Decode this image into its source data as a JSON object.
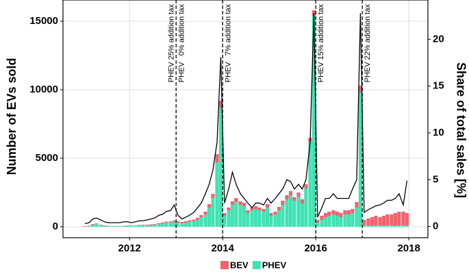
{
  "chart_data": {
    "type": "bar",
    "y_label": "Number of EVs sold",
    "y2_label": "Share of total sales [%]",
    "x": [
      2011.04,
      2011.13,
      2011.21,
      2011.29,
      2011.38,
      2011.46,
      2011.54,
      2011.63,
      2011.71,
      2011.79,
      2011.88,
      2011.96,
      2012.04,
      2012.13,
      2012.21,
      2012.29,
      2012.38,
      2012.46,
      2012.54,
      2012.63,
      2012.71,
      2012.79,
      2012.88,
      2012.96,
      2013.04,
      2013.13,
      2013.21,
      2013.29,
      2013.38,
      2013.46,
      2013.54,
      2013.63,
      2013.71,
      2013.79,
      2013.88,
      2013.96,
      2014.04,
      2014.13,
      2014.21,
      2014.29,
      2014.38,
      2014.46,
      2014.54,
      2014.63,
      2014.71,
      2014.79,
      2014.88,
      2014.96,
      2015.04,
      2015.13,
      2015.21,
      2015.29,
      2015.38,
      2015.46,
      2015.54,
      2015.63,
      2015.71,
      2015.79,
      2015.88,
      2015.96,
      2016.04,
      2016.13,
      2016.21,
      2016.29,
      2016.38,
      2016.46,
      2016.54,
      2016.63,
      2016.71,
      2016.79,
      2016.88,
      2016.96,
      2017.04,
      2017.13,
      2017.21,
      2017.29,
      2017.38,
      2017.46,
      2017.54,
      2017.63,
      2017.71,
      2017.79,
      2017.88,
      2017.96
    ],
    "series": [
      {
        "name": "PHEV",
        "color": "#3fe3b4",
        "values": [
          20,
          40,
          150,
          200,
          120,
          80,
          60,
          40,
          30,
          40,
          50,
          60,
          60,
          70,
          90,
          100,
          110,
          130,
          150,
          200,
          250,
          300,
          300,
          350,
          300,
          250,
          300,
          350,
          400,
          500,
          700,
          900,
          1400,
          2100,
          4700,
          8700,
          800,
          1200,
          1600,
          1800,
          1600,
          1500,
          1000,
          1200,
          1300,
          1200,
          1100,
          1400,
          800,
          900,
          1200,
          1600,
          2000,
          2300,
          1900,
          2200,
          1700,
          2800,
          6200,
          15400,
          300,
          500,
          700,
          800,
          900,
          800,
          700,
          900,
          900,
          1000,
          1400,
          9800,
          100,
          100,
          100,
          100,
          100,
          100,
          100,
          100,
          100,
          100,
          100,
          100
        ]
      },
      {
        "name": "BEV",
        "color": "#f2636d",
        "values": [
          30,
          40,
          50,
          40,
          30,
          20,
          20,
          20,
          20,
          20,
          20,
          30,
          30,
          30,
          40,
          40,
          40,
          50,
          50,
          60,
          60,
          70,
          80,
          100,
          100,
          100,
          100,
          120,
          120,
          150,
          150,
          200,
          250,
          300,
          600,
          500,
          200,
          200,
          250,
          300,
          250,
          250,
          200,
          200,
          200,
          200,
          200,
          250,
          200,
          200,
          250,
          300,
          300,
          300,
          250,
          300,
          300,
          300,
          300,
          400,
          200,
          300,
          300,
          300,
          300,
          300,
          300,
          300,
          300,
          300,
          400,
          500,
          400,
          500,
          600,
          700,
          600,
          700,
          800,
          800,
          900,
          1000,
          1000,
          900
        ]
      },
      {
        "name": "Share",
        "color": "#000000",
        "axis": "y2",
        "values": [
          0.3,
          0.4,
          0.8,
          0.9,
          0.7,
          0.5,
          0.4,
          0.4,
          0.4,
          0.4,
          0.5,
          0.5,
          0.4,
          0.5,
          0.6,
          0.6,
          0.7,
          0.8,
          0.9,
          1.2,
          1.3,
          1.6,
          1.7,
          2.3,
          1.2,
          0.8,
          1.0,
          1.2,
          1.5,
          2.0,
          2.5,
          3.5,
          4.5,
          6.0,
          9.0,
          18.1,
          2.5,
          4.0,
          5.8,
          4.5,
          3.5,
          3.0,
          2.5,
          2.0,
          2.5,
          2.5,
          2.3,
          3.0,
          2.5,
          3.0,
          3.5,
          4.0,
          5.0,
          4.8,
          4.0,
          4.5,
          4.0,
          5.0,
          9.0,
          22.8,
          1.0,
          2.0,
          3.0,
          3.0,
          3.5,
          3.0,
          3.0,
          3.0,
          3.0,
          4.0,
          5.0,
          22.8,
          1.5,
          1.8,
          2.0,
          2.2,
          2.3,
          2.5,
          2.8,
          2.8,
          3.0,
          3.5,
          2.3,
          4.9
        ]
      }
    ],
    "legend": [
      "BEV",
      "PHEV"
    ],
    "xlim": [
      2010.57,
      2018.41
    ],
    "xticks": [
      2012,
      2014,
      2016,
      2018
    ],
    "ylim": [
      -800,
      16550
    ],
    "yticks": [
      0,
      5000,
      10000,
      15000
    ],
    "y2lim": [
      -1.2,
      24.2
    ],
    "y2ticks": [
      0,
      5,
      10,
      15,
      20
    ],
    "grid": true,
    "vlines": [
      2013,
      2014,
      2016,
      2017
    ],
    "annotations": [
      {
        "text": "PHEV 25% addition tax",
        "x": 2012.9
      },
      {
        "text": "PHEV   0% addition tax",
        "x": 2013.12
      },
      {
        "text": "PHEV   7% addition tax",
        "x": 2014.12
      },
      {
        "text": "PHEV 15% addition tax",
        "x": 2016.12
      },
      {
        "text": "PHEV 22% addition tax",
        "x": 2017.12
      }
    ]
  }
}
